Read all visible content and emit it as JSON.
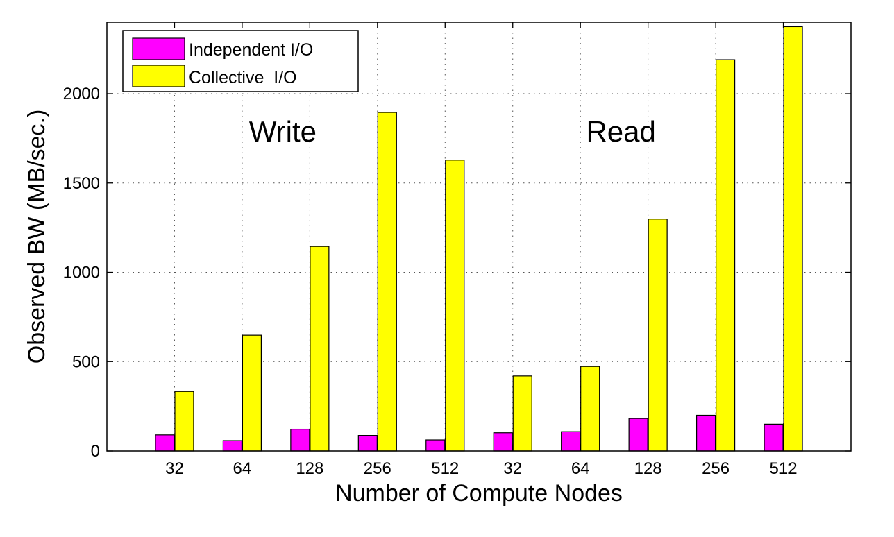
{
  "chart_data": {
    "type": "bar",
    "title": "",
    "xlabel": "Number of Compute Nodes",
    "ylabel": "Observed BW (MB/sec.)",
    "ylim": [
      0,
      2400
    ],
    "yticks": [
      0,
      500,
      1000,
      1500,
      2000
    ],
    "grid": true,
    "legend_position": "top-left",
    "categories": [
      "32",
      "64",
      "128",
      "256",
      "512",
      "32",
      "64",
      "128",
      "256",
      "512"
    ],
    "groups": [
      {
        "label": "Write",
        "category_indices": [
          0,
          1,
          2,
          3,
          4
        ]
      },
      {
        "label": "Read",
        "category_indices": [
          5,
          6,
          7,
          8,
          9
        ]
      }
    ],
    "series": [
      {
        "name": "Independent I/O",
        "color": "#ff00ff",
        "values": [
          90,
          58,
          122,
          87,
          62,
          102,
          108,
          182,
          200,
          150
        ]
      },
      {
        "name": "Collective  I/O",
        "color": "#ffff00",
        "values": [
          333,
          648,
          1145,
          1895,
          1628,
          420,
          473,
          1298,
          2190,
          2375
        ]
      }
    ]
  }
}
